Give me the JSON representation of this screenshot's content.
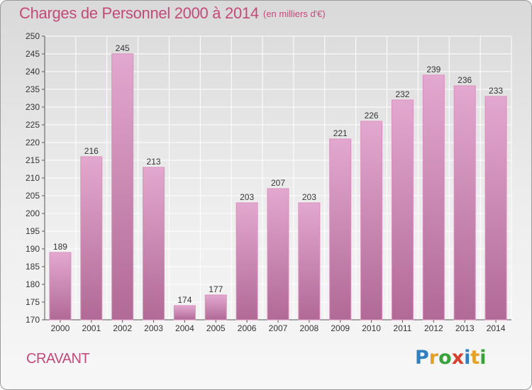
{
  "title": "Charges de Personnel 2000 à 2014",
  "subtitle": "(en milliers d'€)",
  "commune": "CRAVANT",
  "logo": {
    "letters": [
      "P",
      "r",
      "o",
      "x",
      "i",
      "t",
      "i"
    ],
    "colors": [
      "#2f7fc1",
      "#e5a126",
      "#3aa23a",
      "#d93f2f",
      "#2f7fc1",
      "#e5a126",
      "#3aa23a"
    ]
  },
  "chart_data": {
    "type": "bar",
    "categories": [
      "2000",
      "2001",
      "2002",
      "2003",
      "2004",
      "2005",
      "2006",
      "2007",
      "2008",
      "2009",
      "2010",
      "2011",
      "2012",
      "2013",
      "2014"
    ],
    "values": [
      189,
      216,
      245,
      213,
      174,
      177,
      203,
      207,
      203,
      221,
      226,
      232,
      239,
      236,
      233
    ],
    "ylim": [
      170,
      250
    ],
    "yticks": [
      170,
      175,
      180,
      185,
      190,
      195,
      200,
      205,
      210,
      215,
      220,
      225,
      230,
      235,
      240,
      245,
      250
    ],
    "grid": true,
    "bar_color_top": "#e3a8cf",
    "bar_color_bottom": "#b06a95"
  }
}
